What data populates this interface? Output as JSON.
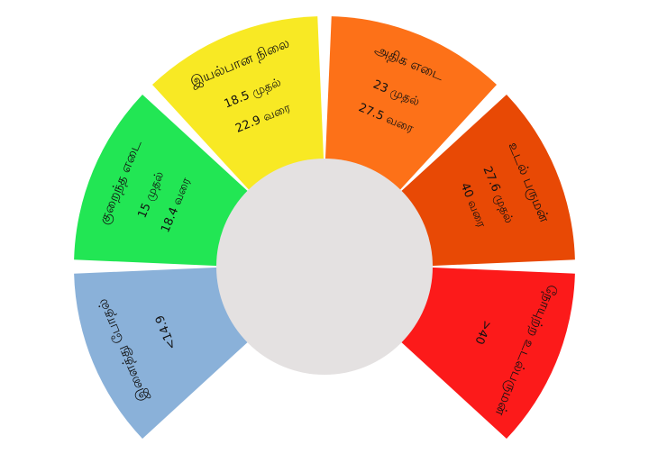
{
  "diagram": {
    "segments": [
      {
        "id": "underweight-extreme",
        "title": "இளைத்து போதல்",
        "lines": [
          "<14.9"
        ],
        "color": "#8ab1d9"
      },
      {
        "id": "underweight",
        "title": "குறைந்த எடை",
        "lines": [
          "15 முதல்",
          "18.4 வரை"
        ],
        "color": "#22e654"
      },
      {
        "id": "normal",
        "title": "இயல்பான நிலை",
        "lines": [
          "18.5 முதல்",
          "22.9 வரை"
        ],
        "color": "#f8e924"
      },
      {
        "id": "overweight",
        "title": "அதிக எடை",
        "lines": [
          "23 முதல்",
          "27.5 வரை"
        ],
        "color": "#fd7118"
      },
      {
        "id": "obese",
        "title": "உடல் பருமன்",
        "lines": [
          "27.6 முதல்",
          "40 வரை"
        ],
        "color": "#e84905"
      },
      {
        "id": "morbid",
        "title": "நோயுற்ற உடல்பருமன்",
        "lines": [
          ">40"
        ],
        "color": "#fc1a1a"
      }
    ],
    "center_color": "#e4e1e1"
  }
}
